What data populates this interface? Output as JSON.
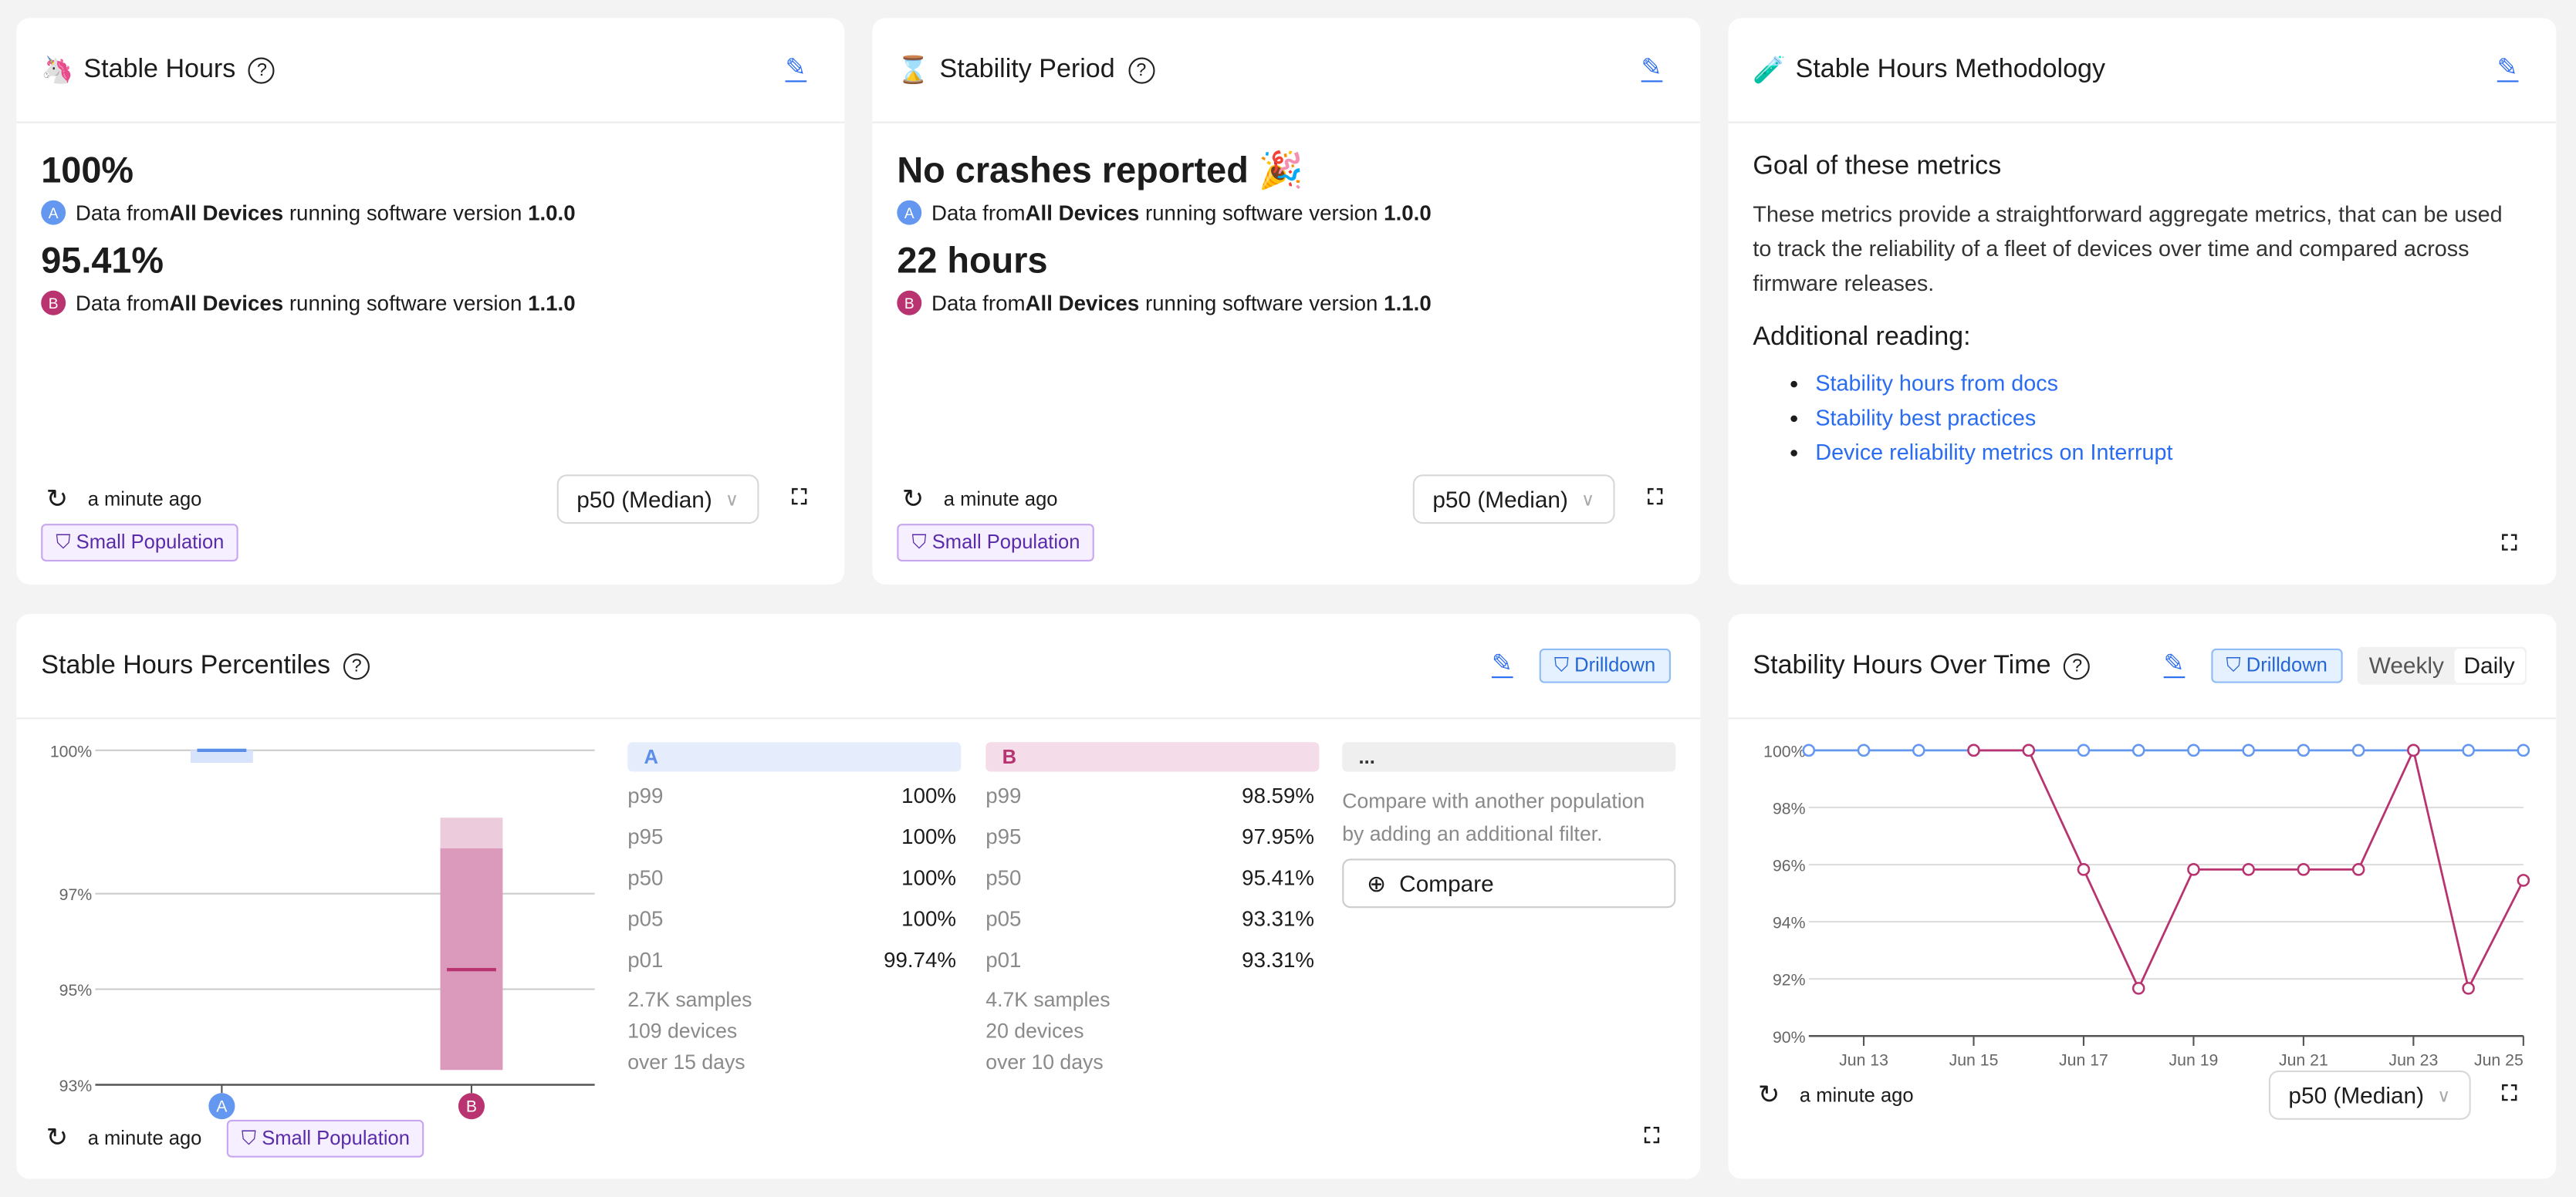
{
  "stable_hours": {
    "icon": "unicorn-icon",
    "emoji": "🦄",
    "title": "Stable Hours",
    "value_a": "100%",
    "value_b": "95.41%",
    "src_a": {
      "badge": "A",
      "pre": "Data from ",
      "bold": "All Devices",
      "mid": " running software version ",
      "ver": "1.0.0"
    },
    "src_b": {
      "badge": "B",
      "pre": "Data from ",
      "bold": "All Devices",
      "mid": " running software version ",
      "ver": "1.1.0"
    },
    "updated": "a minute ago",
    "filter": "Small Population",
    "select": "p50 (Median)"
  },
  "stability_period": {
    "emoji": "⌛",
    "title": "Stability Period",
    "value_a": "No crashes reported 🎉",
    "value_b": "22 hours",
    "src_a": {
      "badge": "A",
      "pre": "Data from ",
      "bold": "All Devices",
      "mid": " running software version ",
      "ver": "1.0.0"
    },
    "src_b": {
      "badge": "B",
      "pre": "Data from ",
      "bold": "All Devices",
      "mid": " running software version ",
      "ver": "1.1.0"
    },
    "updated": "a minute ago",
    "filter": "Small Population",
    "select": "p50 (Median)"
  },
  "methodology": {
    "emoji": "🧪",
    "title": "Stable Hours Methodology",
    "goal_heading": "Goal of these metrics",
    "goal_text": "These metrics provide a straightforward aggregate metrics, that can be used to track the reliability of a fleet of devices over time and compared across firmware releases.",
    "reading_heading": "Additional reading:",
    "links": [
      "Stability hours from docs",
      "Stability best practices",
      "Device reliability metrics on Interrupt"
    ]
  },
  "percentiles": {
    "title": "Stable Hours Percentiles",
    "drilldown": "Drilldown",
    "updated": "a minute ago",
    "filter": "Small Population",
    "columns": [
      {
        "label": "A",
        "rows": [
          [
            "p99",
            "100%"
          ],
          [
            "p95",
            "100%"
          ],
          [
            "p50",
            "100%"
          ],
          [
            "p05",
            "100%"
          ],
          [
            "p01",
            "99.74%"
          ]
        ],
        "samples": "2.7K samples",
        "devices": "109 devices",
        "days": "over 15 days"
      },
      {
        "label": "B",
        "rows": [
          [
            "p99",
            "98.59%"
          ],
          [
            "p95",
            "97.95%"
          ],
          [
            "p50",
            "95.41%"
          ],
          [
            "p05",
            "93.31%"
          ],
          [
            "p01",
            "93.31%"
          ]
        ],
        "samples": "4.7K samples",
        "devices": "20 devices",
        "days": "over 10 days"
      }
    ],
    "compare": {
      "label": "...",
      "text": "Compare with another population by adding an additional filter.",
      "button": "Compare"
    }
  },
  "over_time": {
    "title": "Stability Hours Over Time",
    "drilldown": "Drilldown",
    "weekly": "Weekly",
    "daily": "Daily",
    "updated": "a minute ago",
    "select": "p50 (Median)"
  },
  "chart_data": [
    {
      "type": "bar",
      "title": "Stable Hours Percentiles",
      "yticks": [
        "100%",
        "97%",
        "95%",
        "93%"
      ],
      "ylim": [
        93,
        100
      ],
      "categories": [
        "A",
        "B"
      ],
      "series": [
        {
          "name": "A",
          "color": "#6497ef",
          "p99": 100,
          "p95": 100,
          "p50": 100,
          "p05": 100,
          "p01": 99.74
        },
        {
          "name": "B",
          "color": "#b8336f",
          "p99": 98.59,
          "p95": 97.95,
          "p50": 95.41,
          "p05": 93.31,
          "p01": 93.31
        }
      ]
    },
    {
      "type": "line",
      "title": "Stability Hours Over Time",
      "ylim": [
        90,
        100
      ],
      "yticks": [
        "100%",
        "98%",
        "96%",
        "94%",
        "92%",
        "90%"
      ],
      "x": [
        "Jun 12",
        "Jun 13",
        "Jun 14",
        "Jun 15",
        "Jun 16",
        "Jun 17",
        "Jun 18",
        "Jun 19",
        "Jun 20",
        "Jun 21",
        "Jun 22",
        "Jun 23",
        "Jun 24",
        "Jun 25"
      ],
      "xticks": [
        "Jun 13",
        "Jun 15",
        "Jun 17",
        "Jun 19",
        "Jun 21",
        "Jun 23",
        "Jun 25"
      ],
      "series": [
        {
          "name": "A",
          "color": "#6497ef",
          "values": [
            100,
            100,
            100,
            100,
            100,
            100,
            100,
            100,
            100,
            100,
            100,
            100,
            100,
            100
          ]
        },
        {
          "name": "B",
          "color": "#b8336f",
          "values": [
            null,
            null,
            null,
            100,
            100,
            95.83,
            91.67,
            95.83,
            95.83,
            95.83,
            95.83,
            100,
            91.67,
            95.45
          ]
        }
      ]
    }
  ]
}
